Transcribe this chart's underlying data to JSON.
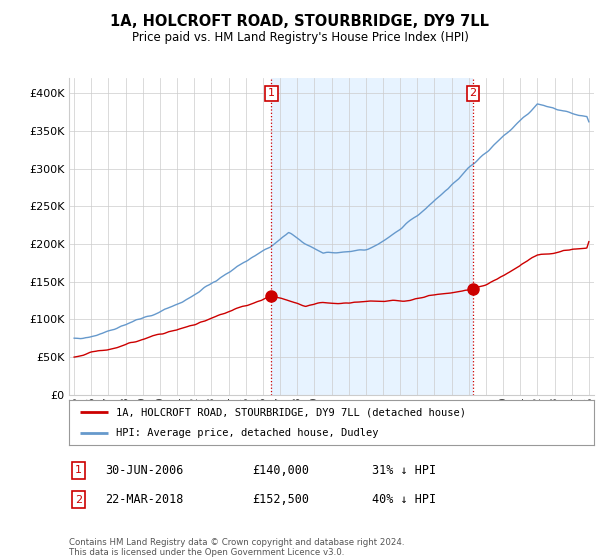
{
  "title": "1A, HOLCROFT ROAD, STOURBRIDGE, DY9 7LL",
  "subtitle": "Price paid vs. HM Land Registry's House Price Index (HPI)",
  "legend_label_red": "1A, HOLCROFT ROAD, STOURBRIDGE, DY9 7LL (detached house)",
  "legend_label_blue": "HPI: Average price, detached house, Dudley",
  "transaction1_label": "1",
  "transaction1_date": "30-JUN-2006",
  "transaction1_price": "£140,000",
  "transaction1_hpi": "31% ↓ HPI",
  "transaction1_year": 2006.5,
  "transaction1_value": 140000,
  "transaction2_label": "2",
  "transaction2_date": "22-MAR-2018",
  "transaction2_price": "£152,500",
  "transaction2_hpi": "40% ↓ HPI",
  "transaction2_year": 2018.25,
  "transaction2_value": 152500,
  "footer": "Contains HM Land Registry data © Crown copyright and database right 2024.\nThis data is licensed under the Open Government Licence v3.0.",
  "ylim": [
    0,
    420000
  ],
  "yticks": [
    0,
    50000,
    100000,
    150000,
    200000,
    250000,
    300000,
    350000,
    400000
  ],
  "red_color": "#cc0000",
  "blue_color": "#6699cc",
  "fill_color": "#ddeeff",
  "grid_color": "#cccccc",
  "bg_color": "#ffffff",
  "marker_box_color": "#cc0000"
}
